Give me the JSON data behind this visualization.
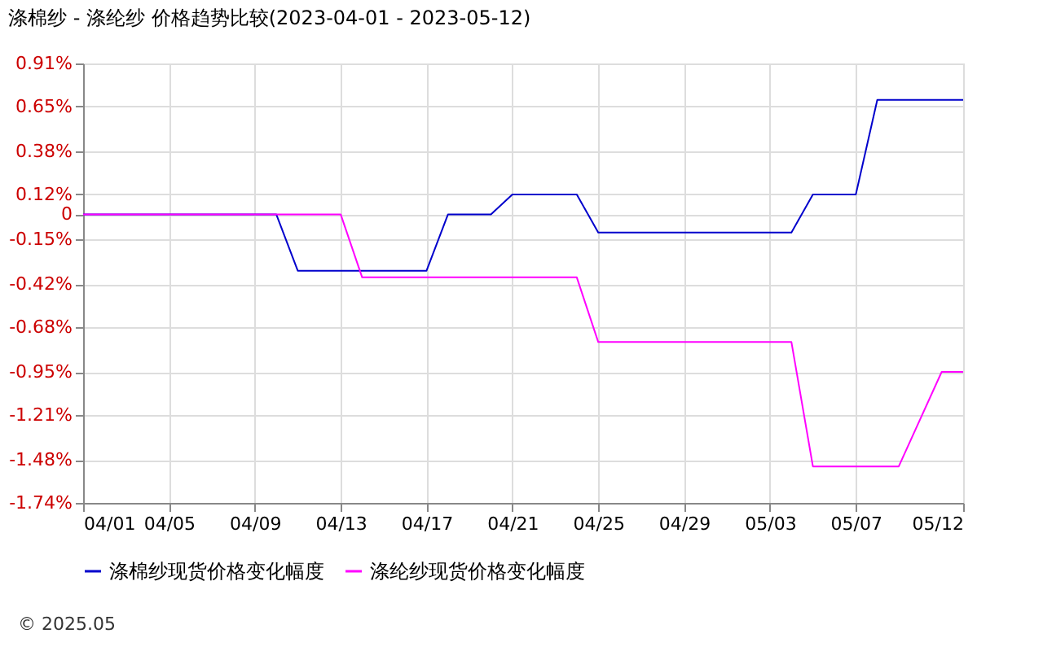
{
  "chart_data": {
    "type": "line",
    "title": "涤棉纱 - 涤纶纱 价格趋势比较(2023-04-01 - 2023-05-12)",
    "xlim": [
      "2023-04-01",
      "2023-05-12"
    ],
    "xticks": [
      {
        "value": "2023-04-01",
        "label": "04/01"
      },
      {
        "value": "2023-04-05",
        "label": "04/05"
      },
      {
        "value": "2023-04-09",
        "label": "04/09"
      },
      {
        "value": "2023-04-13",
        "label": "04/13"
      },
      {
        "value": "2023-04-17",
        "label": "04/17"
      },
      {
        "value": "2023-04-21",
        "label": "04/21"
      },
      {
        "value": "2023-04-25",
        "label": "04/25"
      },
      {
        "value": "2023-04-29",
        "label": "04/29"
      },
      {
        "value": "2023-05-03",
        "label": "05/03"
      },
      {
        "value": "2023-05-07",
        "label": "05/07"
      },
      {
        "value": "2023-05-12",
        "label": "05/12"
      }
    ],
    "ylim": [
      -1.74,
      0.91
    ],
    "yticks": [
      {
        "value": 0.91,
        "label": "0.91%"
      },
      {
        "value": 0.65,
        "label": "0.65%"
      },
      {
        "value": 0.38,
        "label": "0.38%"
      },
      {
        "value": 0.12,
        "label": "0.12%"
      },
      {
        "value": 0,
        "label": "0"
      },
      {
        "value": -0.15,
        "label": "-0.15%"
      },
      {
        "value": -0.42,
        "label": "-0.42%"
      },
      {
        "value": -0.68,
        "label": "-0.68%"
      },
      {
        "value": -0.95,
        "label": "-0.95%"
      },
      {
        "value": -1.21,
        "label": "-1.21%"
      },
      {
        "value": -1.48,
        "label": "-1.48%"
      },
      {
        "value": -1.74,
        "label": "-1.74%"
      }
    ],
    "grid": true,
    "legend": "bottom",
    "marker": "none",
    "line_style": "solid",
    "series": [
      {
        "name": "涤棉纱现货价格变化幅度",
        "color": "#0000cc",
        "x": [
          "2023-04-01",
          "2023-04-10",
          "2023-04-11",
          "2023-04-17",
          "2023-04-18",
          "2023-04-20",
          "2023-04-21",
          "2023-04-24",
          "2023-04-25",
          "2023-05-04",
          "2023-05-05",
          "2023-05-07",
          "2023-05-08",
          "2023-05-12"
        ],
        "values": [
          0,
          0,
          -0.34,
          -0.34,
          0,
          0,
          0.12,
          0.12,
          -0.11,
          -0.11,
          0.12,
          0.12,
          0.69,
          0.69
        ]
      },
      {
        "name": "涤纶纱现货价格变化幅度",
        "color": "#ff00ff",
        "x": [
          "2023-04-01",
          "2023-04-13",
          "2023-04-14",
          "2023-04-24",
          "2023-04-25",
          "2023-05-04",
          "2023-05-05",
          "2023-05-09",
          "2023-05-11",
          "2023-05-12"
        ],
        "values": [
          0,
          0,
          -0.38,
          -0.38,
          -0.77,
          -0.77,
          -1.52,
          -1.52,
          -0.95,
          -0.95
        ]
      }
    ],
    "annotations": [
      "© 2025.05"
    ]
  }
}
